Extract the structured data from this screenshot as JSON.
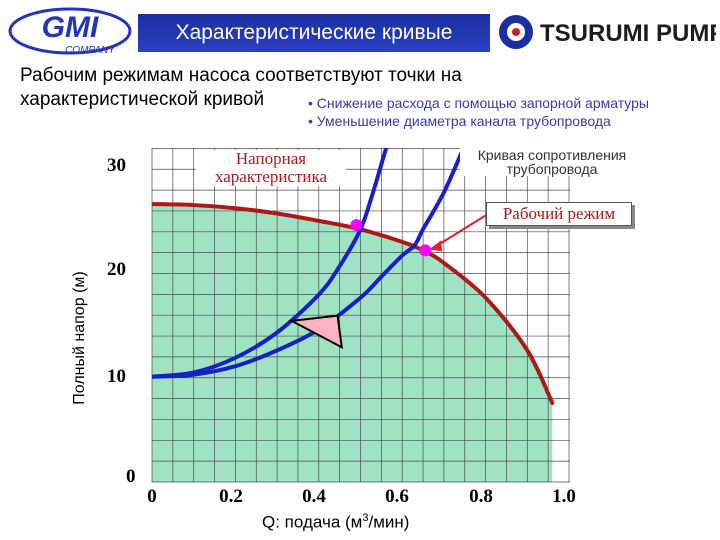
{
  "header": {
    "gmi_logo_text": "GMI",
    "gmi_logo_subtext": "COMPANY",
    "title": "Характеристические кривые",
    "tsurumi_logo_text": "TSURUMI PUMP"
  },
  "intro": {
    "line1": "Рабочим режимам насоса соответствуют точки на",
    "line2": "характеристической кривой"
  },
  "notes": [
    "Снижение расхода с помощью запорной арматуры",
    "Уменьшение диаметра канала трубопровода"
  ],
  "colors": {
    "title_banner": "#1b2fa3",
    "pump_curve": "#b01818",
    "resistance_curve": "#1520c8",
    "fill": "#9fe3c4",
    "marker": "#ff00ff",
    "notes_text": "#3a3aa8"
  },
  "chart_data": {
    "type": "line",
    "xlabel": "Q: подача (м",
    "xlabel_sup": "3",
    "xlabel_tail": "/мин)",
    "ylabel": "Полный напор (м)",
    "x_ticks": [
      "0",
      "0.2",
      "0.4",
      "0.6",
      "0.8",
      "1.0"
    ],
    "y_ticks": [
      "0",
      "10",
      "20",
      "30"
    ],
    "xlim": [
      0,
      1.0
    ],
    "ylim": [
      0,
      30
    ],
    "grid": true,
    "series": [
      {
        "name": "Напорная характеристика",
        "color": "#b01818",
        "x": [
          0,
          0.1,
          0.2,
          0.3,
          0.4,
          0.5,
          0.6,
          0.65,
          0.7,
          0.8,
          0.9,
          0.96
        ],
        "y": [
          26.4,
          26.3,
          26.0,
          25.5,
          24.8,
          24.0,
          22.8,
          22.0,
          20.8,
          17.5,
          12.5,
          7.5
        ]
      },
      {
        "name": "Кривая сопротивления трубопровода",
        "color": "#1520c8",
        "x": [
          0,
          0.1,
          0.2,
          0.3,
          0.4,
          0.5,
          0.55,
          0.6,
          0.63,
          0.65,
          0.7,
          0.75
        ],
        "y": [
          10,
          10.2,
          11,
          12.5,
          14.5,
          17.5,
          19.5,
          21.5,
          22.5,
          24,
          27.5,
          32
        ]
      },
      {
        "name": "",
        "color": "#1520c8",
        "x": [
          0,
          0.1,
          0.2,
          0.3,
          0.4,
          0.45,
          0.5,
          0.53,
          0.56,
          0.58
        ],
        "y": [
          10,
          10.4,
          11.8,
          14.2,
          17.8,
          20.5,
          24,
          27.5,
          31.5,
          34
        ]
      }
    ],
    "points": [
      {
        "x": 0.49,
        "y": 24.4
      },
      {
        "x": 0.655,
        "y": 22.0
      }
    ],
    "annotations": {
      "pump_curve_line1": "Напорная",
      "pump_curve_line2": "характеристика",
      "resistance_line1": "Кривая сопротивления",
      "resistance_line2": "трубопровода",
      "operating_point": "Рабочий режим"
    }
  }
}
